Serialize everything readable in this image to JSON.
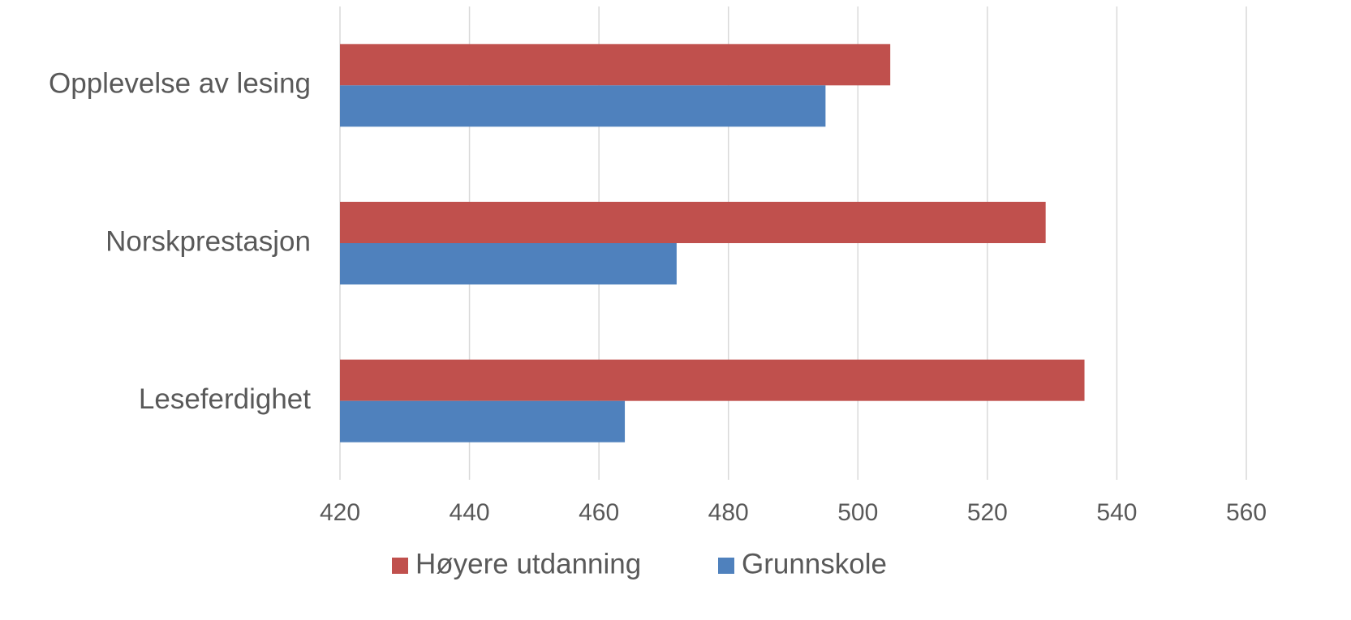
{
  "chart_data": {
    "type": "bar",
    "orientation": "horizontal",
    "categories": [
      "Opplevelse av lesing",
      "Norskprestasjon",
      "Leseferdighet"
    ],
    "series": [
      {
        "name": "Høyere utdanning",
        "color": "#c0504d",
        "values": [
          505,
          529,
          535
        ]
      },
      {
        "name": "Grunnskole",
        "color": "#4f81bd",
        "values": [
          495,
          472,
          464
        ]
      }
    ],
    "xlim": [
      420,
      560
    ],
    "xticks": [
      420,
      440,
      460,
      480,
      500,
      520,
      540,
      560
    ],
    "grid": true,
    "legend": "bottom"
  }
}
